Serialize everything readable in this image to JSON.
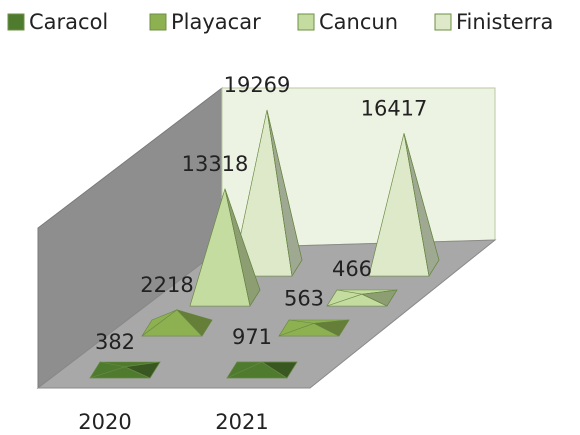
{
  "chart_data": {
    "type": "pyramid3d",
    "categories": [
      "2020",
      "2021"
    ],
    "series": [
      {
        "name": "Caracol",
        "color": "#4f7b2f",
        "values": [
          382,
          971
        ]
      },
      {
        "name": "Playacar",
        "color": "#8db050",
        "values": [
          2218,
          563
        ]
      },
      {
        "name": "Cancun",
        "color": "#c5dca0",
        "values": [
          13318,
          466
        ]
      },
      {
        "name": "Finisterra",
        "color": "#dde9c8",
        "values": [
          19269,
          16417
        ]
      }
    ],
    "legend": "top"
  }
}
